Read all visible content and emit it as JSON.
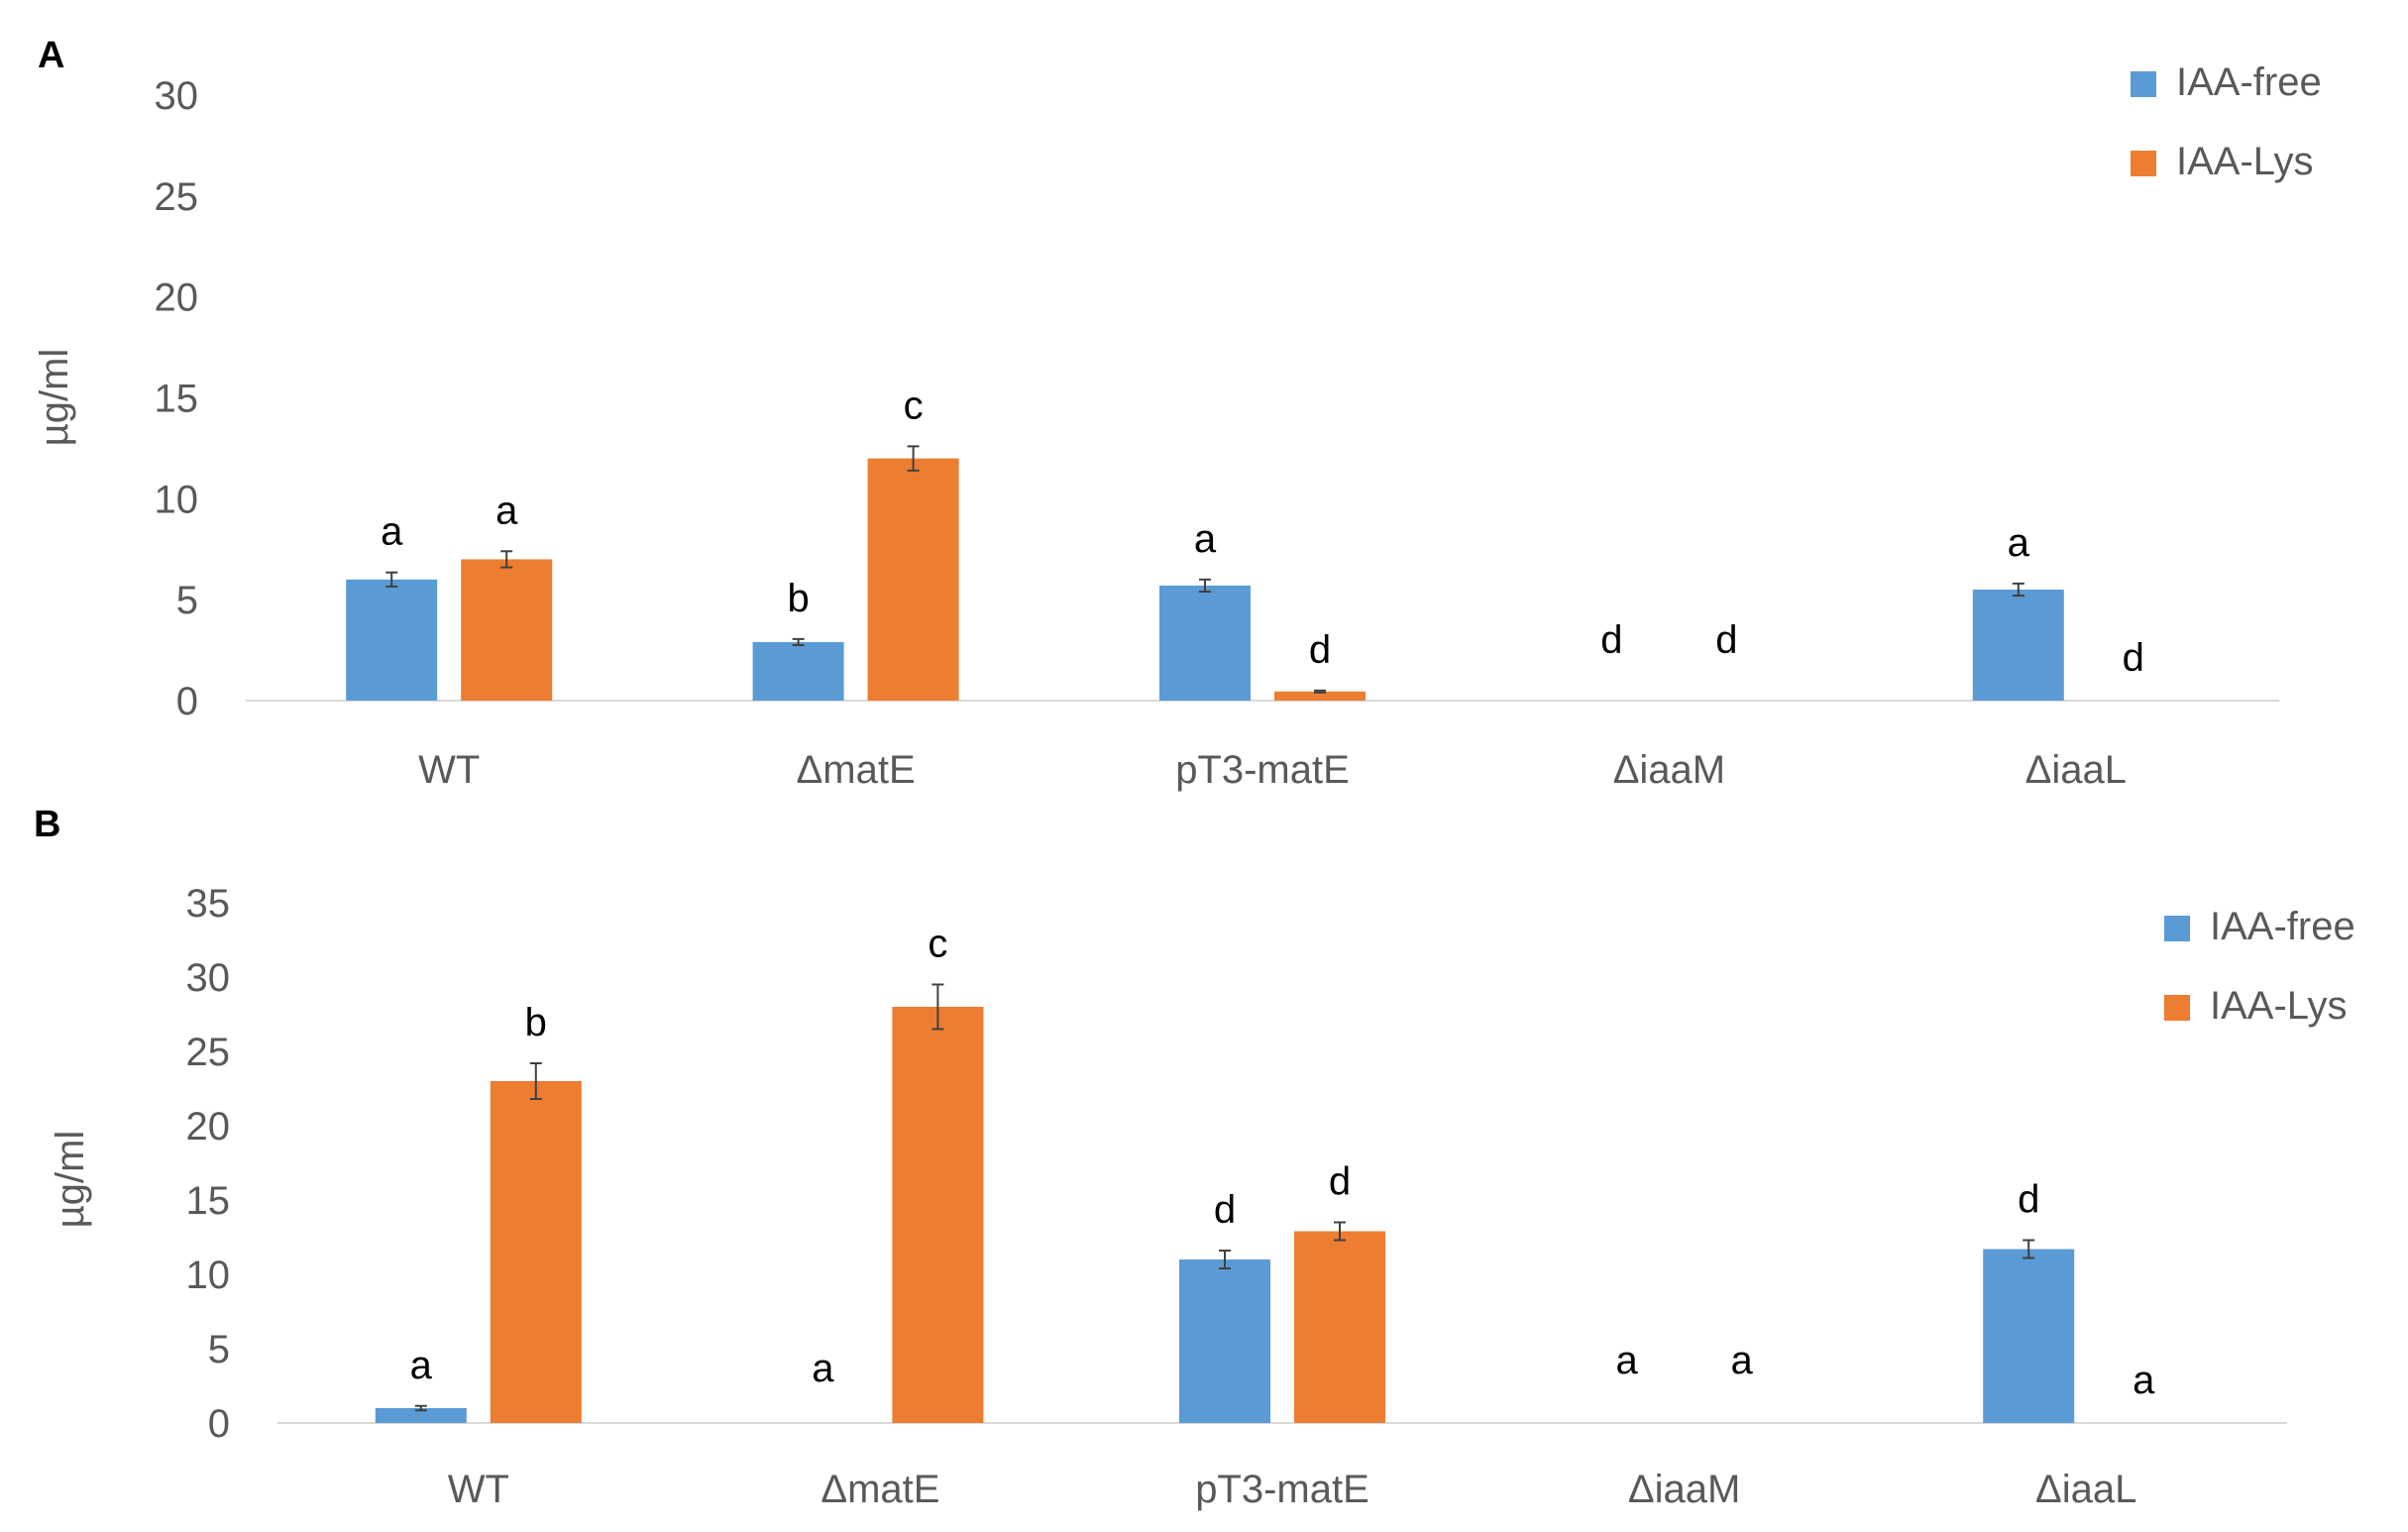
{
  "chart_data": [
    {
      "panel_label": "A",
      "type": "bar",
      "ylabel": "µg/ml",
      "ylim": [
        0,
        30
      ],
      "yticks": [
        0,
        5,
        10,
        15,
        20,
        25,
        30
      ],
      "categories": [
        "WT",
        "ΔmatE",
        "pT3-matE",
        "ΔiaaM",
        "ΔiaaL"
      ],
      "series": [
        {
          "name": "IAA-free",
          "color": "#5B9BD5",
          "values": [
            6.0,
            2.9,
            5.7,
            0,
            5.5
          ],
          "errors": [
            0.35,
            0.15,
            0.3,
            0,
            0.3
          ],
          "labels": [
            "a",
            "b",
            "a",
            "d",
            "a"
          ]
        },
        {
          "name": "IAA-Lys",
          "color": "#ED7D31",
          "values": [
            7.0,
            12.0,
            0.45,
            0,
            0
          ],
          "errors": [
            0.4,
            0.6,
            0.05,
            0,
            0
          ],
          "labels": [
            "a",
            "c",
            "d",
            "d",
            "d"
          ]
        }
      ],
      "legend": "top-right",
      "grid": false
    },
    {
      "panel_label": "B",
      "type": "bar",
      "ylabel": "µg/ml",
      "ylim": [
        0,
        35
      ],
      "yticks": [
        0,
        5,
        10,
        15,
        20,
        25,
        30,
        35
      ],
      "categories": [
        "WT",
        "ΔmatE",
        "pT3-matE",
        "ΔiaaM",
        "ΔiaaL"
      ],
      "series": [
        {
          "name": "IAA-free",
          "color": "#5B9BD5",
          "values": [
            1.0,
            0,
            11.0,
            0,
            11.7
          ],
          "errors": [
            0.15,
            0,
            0.6,
            0,
            0.6
          ],
          "labels": [
            "a",
            "a",
            "d",
            "a",
            "d"
          ]
        },
        {
          "name": "IAA-Lys",
          "color": "#ED7D31",
          "values": [
            23.0,
            28.0,
            12.9,
            0,
            0
          ],
          "errors": [
            1.2,
            1.5,
            0.6,
            0,
            0
          ],
          "labels": [
            "b",
            "c",
            "d",
            "a",
            "a"
          ]
        }
      ],
      "legend": "top-right",
      "grid": false
    }
  ]
}
